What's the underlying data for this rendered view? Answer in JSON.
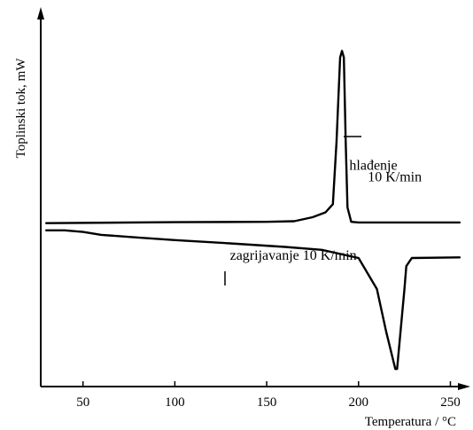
{
  "chart_data": {
    "type": "line",
    "xlabel": "Temperatura / °C",
    "ylabel": "Toplinski tok, mW",
    "xlim": [
      27,
      257
    ],
    "ylim": [
      0,
      100
    ],
    "x_ticks": [
      50,
      100,
      150,
      200,
      250
    ],
    "x_tick_labels": [
      "50",
      "100",
      "150",
      "200",
      "250"
    ],
    "grid": false,
    "legend": "none",
    "series": [
      {
        "x": [
          30,
          100,
          150,
          165,
          175,
          182,
          186,
          188,
          190,
          191,
          192,
          193,
          194,
          196,
          200,
          255
        ],
        "y": [
          45.2,
          45.5,
          45.6,
          45.8,
          47,
          48.5,
          51,
          70,
          96,
          98,
          96,
          70,
          50,
          45.6,
          45.4,
          45.4
        ]
      },
      {
        "x": [
          30,
          40,
          50,
          60,
          80,
          100,
          130,
          160,
          180,
          200,
          210,
          215,
          220,
          221,
          225,
          226,
          229,
          255
        ],
        "y": [
          43,
          43,
          42.5,
          41.6,
          40.8,
          40,
          39,
          37.9,
          37,
          34.5,
          25,
          12,
          0.5,
          0.5,
          25,
          32,
          34.5,
          34.7
        ]
      }
    ],
    "annotations": [
      {
        "text": "hlađenje",
        "x": 195,
        "y": 61.5
      },
      {
        "text": "10 K/min",
        "x": 205,
        "y": 58
      },
      {
        "text": "zagrijavanje 10 K/min",
        "x": 130,
        "y": 34
      }
    ]
  }
}
